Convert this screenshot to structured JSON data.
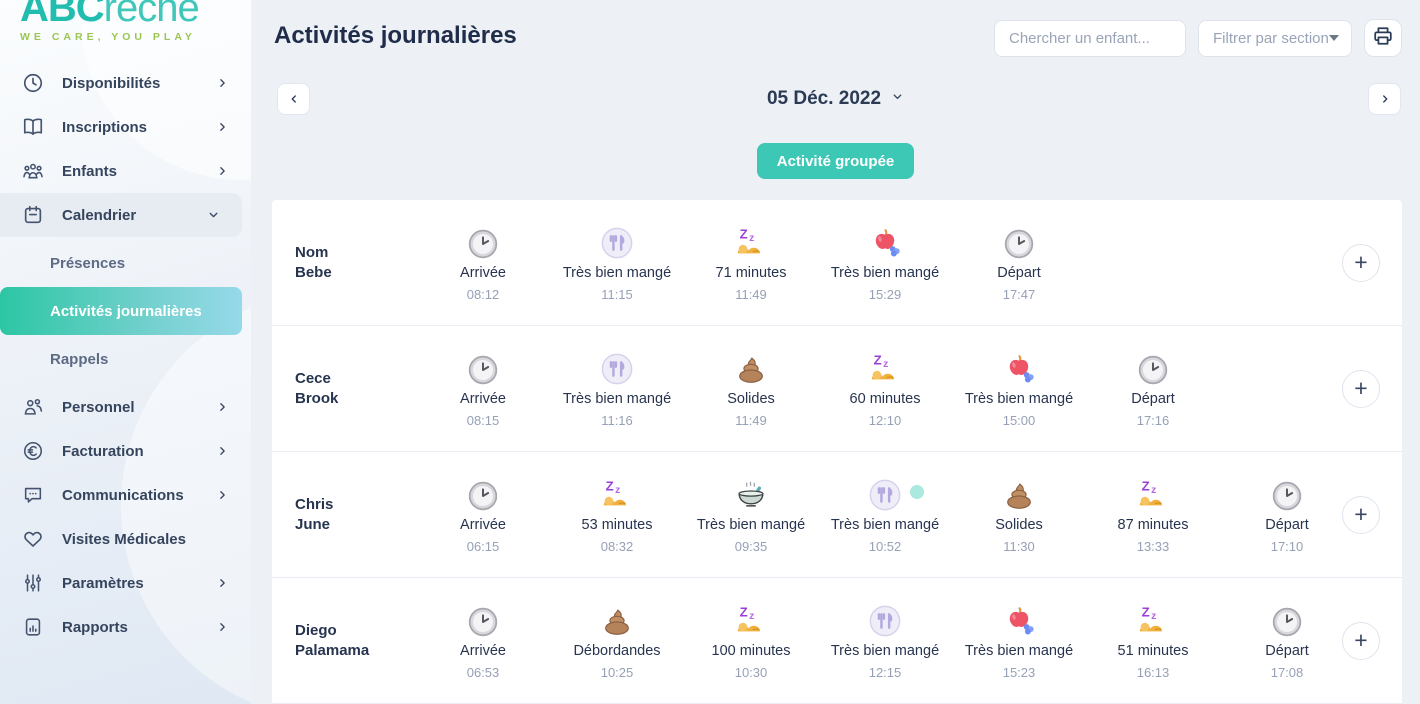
{
  "brand": {
    "name_bold": "ABC",
    "name_light": "reche",
    "tagline": "WE CARE, YOU PLAY"
  },
  "sidebar": {
    "items": [
      {
        "label": "Disponibilités",
        "icon": "clock-outline",
        "chevron": "right"
      },
      {
        "label": "Inscriptions",
        "icon": "book",
        "chevron": "right"
      },
      {
        "label": "Enfants",
        "icon": "children",
        "chevron": "right"
      },
      {
        "label": "Calendrier",
        "icon": "calendar",
        "chevron": "down",
        "expanded": true,
        "subitems": [
          {
            "label": "Présences",
            "active": false
          },
          {
            "label": "Activités journalières",
            "active": true
          },
          {
            "label": "Rappels",
            "active": false
          }
        ]
      },
      {
        "label": "Personnel",
        "icon": "personnel",
        "chevron": "right"
      },
      {
        "label": "Facturation",
        "icon": "euro",
        "chevron": "right"
      },
      {
        "label": "Communications",
        "icon": "chat",
        "chevron": "right"
      },
      {
        "label": "Visites Médicales",
        "icon": "heart",
        "chevron": "none"
      },
      {
        "label": "Paramètres",
        "icon": "sliders",
        "chevron": "right"
      },
      {
        "label": "Rapports",
        "icon": "report",
        "chevron": "right"
      }
    ]
  },
  "header": {
    "title": "Activités journalières",
    "search_placeholder": "Chercher un enfant...",
    "filter_label": "Filtrer par section"
  },
  "date_nav": {
    "date": "05 Déc. 2022"
  },
  "group_button_label": "Activité groupée",
  "add_button_label": "+",
  "colors": {
    "accent": "#3cc8b4",
    "active_start": "#2cc6a4",
    "active_end": "#97d9e9"
  },
  "table": {
    "rows": [
      {
        "name_line1": "Nom",
        "name_line2": "Bebe",
        "activities": [
          {
            "icon": "clock",
            "label": "Arrivée",
            "time": "08:12"
          },
          {
            "icon": "meal",
            "label": "Très bien mangé",
            "time": "11:15"
          },
          {
            "icon": "sleep",
            "label": "71 minutes",
            "time": "11:49"
          },
          {
            "icon": "snack",
            "label": "Très bien mangé",
            "time": "15:29"
          },
          {
            "icon": "clock",
            "label": "Départ",
            "time": "17:47"
          }
        ]
      },
      {
        "name_line1": "Cece",
        "name_line2": "Brook",
        "activities": [
          {
            "icon": "clock",
            "label": "Arrivée",
            "time": "08:15"
          },
          {
            "icon": "meal",
            "label": "Très bien mangé",
            "time": "11:16"
          },
          {
            "icon": "poop",
            "label": "Solides",
            "time": "11:49"
          },
          {
            "icon": "sleep",
            "label": "60 minutes",
            "time": "12:10"
          },
          {
            "icon": "snack",
            "label": "Très bien mangé",
            "time": "15:00"
          },
          {
            "icon": "clock",
            "label": "Départ",
            "time": "17:16"
          }
        ]
      },
      {
        "name_line1": "Chris",
        "name_line2": "June",
        "activities": [
          {
            "icon": "clock",
            "label": "Arrivée",
            "time": "06:15"
          },
          {
            "icon": "sleep",
            "label": "53 minutes",
            "time": "08:32"
          },
          {
            "icon": "bowl",
            "label": "Très bien mangé",
            "time": "09:35"
          },
          {
            "icon": "meal",
            "label": "Très bien mangé",
            "time": "10:52",
            "dot": true
          },
          {
            "icon": "poop",
            "label": "Solides",
            "time": "11:30"
          },
          {
            "icon": "sleep",
            "label": "87 minutes",
            "time": "13:33"
          },
          {
            "icon": "clock",
            "label": "Départ",
            "time": "17:10"
          }
        ]
      },
      {
        "name_line1": "Diego",
        "name_line2": "Palamama",
        "activities": [
          {
            "icon": "clock",
            "label": "Arrivée",
            "time": "06:53"
          },
          {
            "icon": "poop",
            "label": "Débordandes",
            "time": "10:25"
          },
          {
            "icon": "sleep",
            "label": "100 minutes",
            "time": "10:30"
          },
          {
            "icon": "meal",
            "label": "Très bien mangé",
            "time": "12:15"
          },
          {
            "icon": "snack",
            "label": "Très bien mangé",
            "time": "15:23"
          },
          {
            "icon": "sleep",
            "label": "51 minutes",
            "time": "16:13"
          },
          {
            "icon": "clock",
            "label": "Départ",
            "time": "17:08"
          }
        ]
      }
    ]
  }
}
